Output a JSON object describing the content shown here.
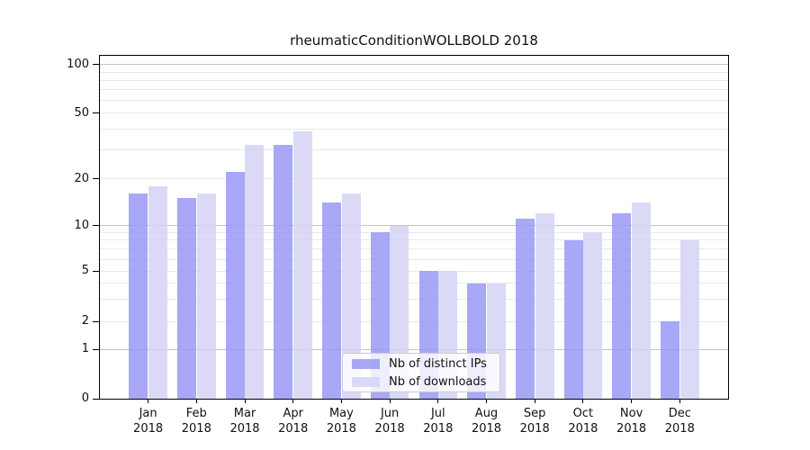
{
  "title": "rheumaticConditionWOLLBOLD 2018",
  "colors": {
    "ips_bar": "#a8a8f6",
    "downloads_bar": "#dadaf7",
    "ips_bar_rgba": "rgba(153,153,245,0.85)",
    "downloads_bar_rgba": "rgba(212,212,246,0.85)",
    "grid_minor": "#e9e9e9",
    "grid_major": "#c3c3c3",
    "spine": "#000000"
  },
  "legend": {
    "items": [
      {
        "label": "Nb of distinct IPs",
        "color_key": "ips_bar_rgba"
      },
      {
        "label": "Nb of downloads",
        "color_key": "downloads_bar_rgba"
      }
    ]
  },
  "y_axis": {
    "tick_values": [
      0,
      1,
      2,
      5,
      10,
      20,
      50,
      100
    ],
    "tick_labels": [
      "0",
      "1",
      "2",
      "5",
      "10",
      "20",
      "50",
      "100"
    ]
  },
  "x_axis": {
    "categories": [
      {
        "month": "Jan",
        "year": "2018"
      },
      {
        "month": "Feb",
        "year": "2018"
      },
      {
        "month": "Mar",
        "year": "2018"
      },
      {
        "month": "Apr",
        "year": "2018"
      },
      {
        "month": "May",
        "year": "2018"
      },
      {
        "month": "Jun",
        "year": "2018"
      },
      {
        "month": "Jul",
        "year": "2018"
      },
      {
        "month": "Aug",
        "year": "2018"
      },
      {
        "month": "Sep",
        "year": "2018"
      },
      {
        "month": "Oct",
        "year": "2018"
      },
      {
        "month": "Nov",
        "year": "2018"
      },
      {
        "month": "Dec",
        "year": "2018"
      }
    ]
  },
  "chart_data": {
    "type": "bar",
    "title": "rheumaticConditionWOLLBOLD 2018",
    "categories": [
      "Jan 2018",
      "Feb 2018",
      "Mar 2018",
      "Apr 2018",
      "May 2018",
      "Jun 2018",
      "Jul 2018",
      "Aug 2018",
      "Sep 2018",
      "Oct 2018",
      "Nov 2018",
      "Dec 2018"
    ],
    "series": [
      {
        "name": "Nb of distinct IPs",
        "values": [
          16,
          15,
          22,
          32,
          14,
          9,
          5,
          4,
          11,
          8,
          12,
          2
        ]
      },
      {
        "name": "Nb of downloads",
        "values": [
          18,
          16,
          32,
          39,
          16,
          10,
          5,
          4,
          12,
          9,
          14,
          8
        ]
      }
    ],
    "xlabel": "",
    "ylabel": "",
    "yscale": "log-like (labeled ticks 0,1,2,5,10,20,50,100; compressed near zero)",
    "yticks": [
      0,
      1,
      2,
      5,
      10,
      20,
      50,
      100
    ],
    "grid": "horizontal, minor light + major darker at 1/10/100",
    "legend_position": "inside bottom-center"
  }
}
